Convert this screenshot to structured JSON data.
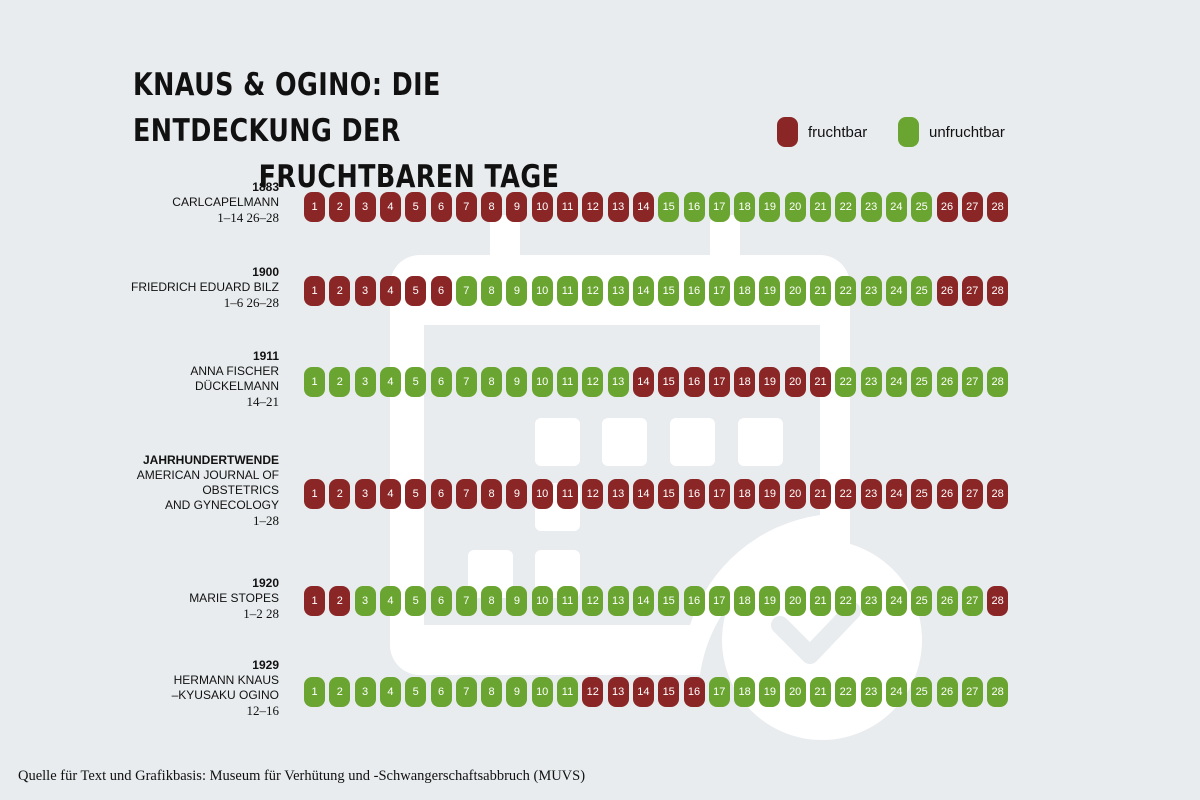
{
  "title": {
    "line1": "KNAUS & OGINO: DIE ENTDECKUNG DER",
    "line2": "FRUCHTBAREN TAGE"
  },
  "legend": [
    {
      "label": "fruchtbar",
      "color": "#8b2627",
      "state": "fruchtbar"
    },
    {
      "label": "unfruchtbar",
      "color": "#6aa531",
      "state": "unfruchtbar"
    }
  ],
  "colors": {
    "fertile": "#8b2627",
    "infertile": "#6aa531",
    "background": "#e8ecee",
    "background_icon": "#ffffff"
  },
  "background_icon": "calendar-check-icon",
  "cycle_days": 28,
  "rows": [
    {
      "year": "1883",
      "name_lines": [
        "CARLCAPELMANN"
      ],
      "days_text": "1–14  26–28",
      "fertile_ranges": [
        [
          1,
          14
        ],
        [
          26,
          28
        ]
      ]
    },
    {
      "year": "1900",
      "name_lines": [
        "FRIEDRICH EDUARD BILZ"
      ],
      "days_text": "1–6  26–28",
      "fertile_ranges": [
        [
          1,
          6
        ],
        [
          26,
          28
        ]
      ]
    },
    {
      "year": "1911",
      "name_lines": [
        "ANNA FISCHER",
        "DÜCKELMANN"
      ],
      "days_text": "14–21",
      "fertile_ranges": [
        [
          14,
          21
        ]
      ]
    },
    {
      "year": "JAHRHUNDERTWENDE",
      "name_lines": [
        "AMERICAN JOURNAL OF",
        "OBSTETRICS",
        "AND GYNECOLOGY"
      ],
      "days_text": "1–28",
      "fertile_ranges": [
        [
          1,
          28
        ]
      ]
    },
    {
      "year": "1920",
      "name_lines": [
        "MARIE STOPES"
      ],
      "days_text": "1–2  28",
      "fertile_ranges": [
        [
          1,
          2
        ],
        [
          28,
          28
        ]
      ]
    },
    {
      "year": "1929",
      "name_lines": [
        "HERMANN KNAUS",
        "–KYUSAKU OGINO"
      ],
      "days_text": "12–16",
      "fertile_ranges": [
        [
          12,
          16
        ]
      ]
    }
  ],
  "source": "Quelle für Text und Grafikbasis: Museum für Verhütung und -Schwangerschaftsabbruch (MUVS)"
}
